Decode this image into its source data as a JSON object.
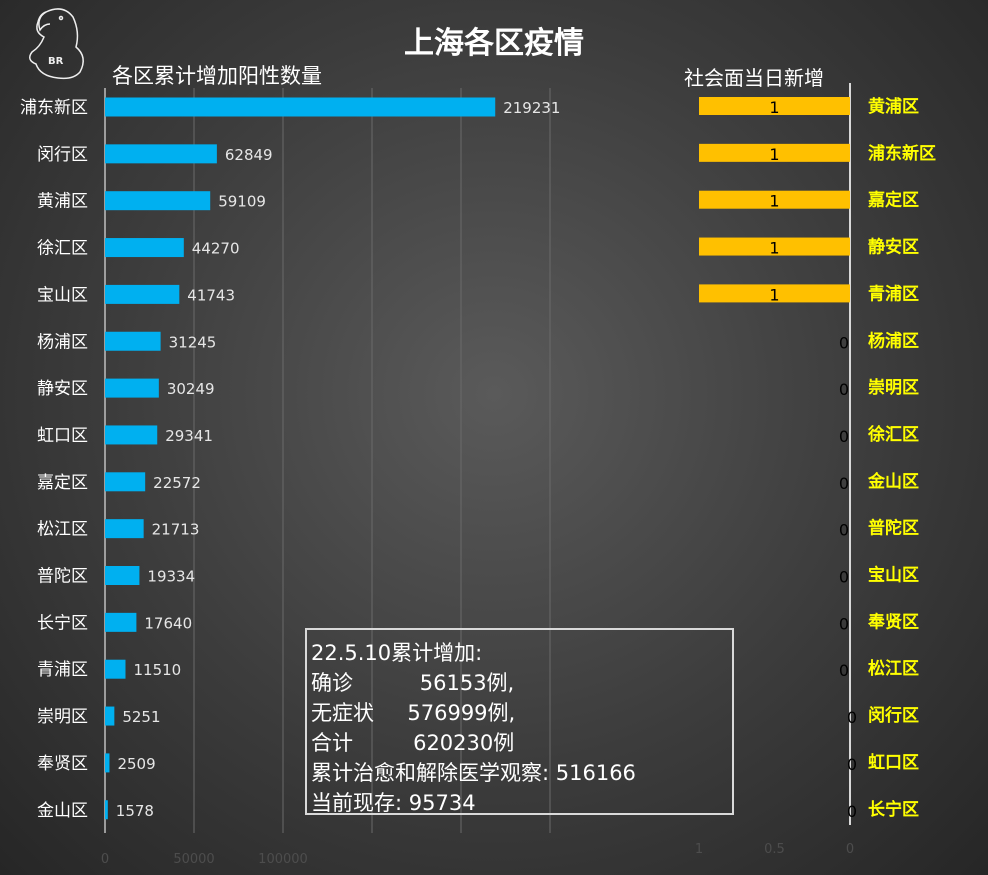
{
  "chart_data": [
    {
      "type": "bar",
      "orientation": "horizontal",
      "title": "上海各区疫情",
      "subtitle": "各区累计增加阳性数量",
      "categories": [
        "浦东新区",
        "闵行区",
        "黄浦区",
        "徐汇区",
        "宝山区",
        "杨浦区",
        "静安区",
        "虹口区",
        "嘉定区",
        "松江区",
        "普陀区",
        "长宁区",
        "青浦区",
        "崇明区",
        "奉贤区",
        "金山区"
      ],
      "values": [
        219231,
        62849,
        59109,
        44270,
        41743,
        31245,
        30249,
        29341,
        22572,
        21713,
        19334,
        17640,
        11510,
        5251,
        2509,
        1578
      ],
      "xlim": [
        0,
        250000
      ],
      "xticks": [
        "0",
        "50000",
        "100000"
      ],
      "grid": true,
      "color": "#00B0F0"
    },
    {
      "type": "bar",
      "orientation": "horizontal",
      "reversed": true,
      "subtitle": "社会面当日新增",
      "categories": [
        "黄浦区",
        "浦东新区",
        "嘉定区",
        "静安区",
        "青浦区",
        "杨浦区",
        "崇明区",
        "徐汇区",
        "金山区",
        "普陀区",
        "宝山区",
        "奉贤区",
        "松江区",
        "闵行区",
        "虹口区",
        "长宁区"
      ],
      "values": [
        1,
        1,
        1,
        1,
        1,
        0,
        0,
        0,
        0,
        0,
        0,
        0,
        0,
        0,
        0,
        0
      ],
      "xlim": [
        0,
        1
      ],
      "xticks": [
        "1",
        "0.5",
        "0"
      ],
      "color": "#FFC000",
      "label_color": "#FFFF00"
    }
  ],
  "logo_text": "BR",
  "summary": {
    "lines": [
      "22.5.10累计增加:",
      "确诊          56153例,",
      "无症状     576999例,",
      "合计         620230例",
      "累计治愈和解除医学观察: 516166",
      "当前现存: 95734"
    ]
  }
}
